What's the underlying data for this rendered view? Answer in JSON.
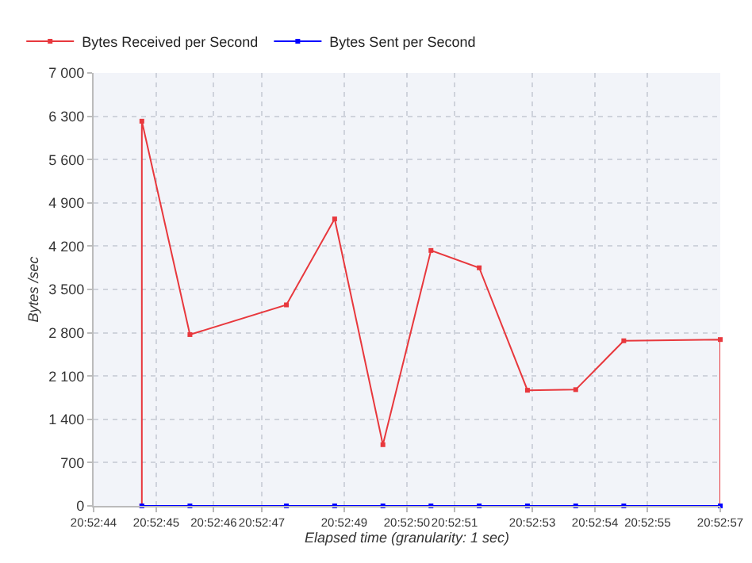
{
  "chart_data": {
    "type": "line",
    "xlabel": "Elapsed time (granularity: 1 sec)",
    "ylabel": "Bytes /sec",
    "series": [
      {
        "name": "Bytes Received per Second",
        "color": "#e8383d",
        "x": [
          20.879167,
          20.879167,
          20.879444,
          20.88,
          20.880278,
          20.880556,
          20.880833,
          20.881111,
          20.881389,
          20.881667,
          20.881944,
          20.8825,
          20.8825
        ],
        "values": [
          0,
          6220,
          2770,
          3250,
          4640,
          990,
          4130,
          3850,
          1870,
          1880,
          2670,
          2690,
          0
        ]
      },
      {
        "name": "Bytes Sent per Second",
        "color": "#0000ff",
        "x": [
          20.879167,
          20.879444,
          20.88,
          20.880278,
          20.880556,
          20.880833,
          20.881111,
          20.881389,
          20.881667,
          20.881944,
          20.8825
        ],
        "values": [
          0,
          0,
          0,
          0,
          0,
          0,
          0,
          0,
          0,
          0,
          0
        ]
      }
    ],
    "xlim": [
      20.878889,
      20.8825
    ],
    "xticks": [
      {
        "value": 20.878889,
        "label": "20:52:44"
      },
      {
        "value": 20.87925,
        "label": "20:52:45"
      },
      {
        "value": 20.879581,
        "label": "20:52:46"
      },
      {
        "value": 20.879858,
        "label": "20:52:47"
      },
      {
        "value": 20.880333,
        "label": "20:52:49"
      },
      {
        "value": 20.880694,
        "label": "20:52:50"
      },
      {
        "value": 20.880969,
        "label": "20:52:51"
      },
      {
        "value": 20.881417,
        "label": "20:52:53"
      },
      {
        "value": 20.881778,
        "label": "20:52:54"
      },
      {
        "value": 20.882081,
        "label": "20:52:55"
      },
      {
        "value": 20.8825,
        "label": "20:52:57"
      }
    ],
    "ylim": [
      0,
      7000
    ],
    "yticks": [
      0,
      700,
      {
        "value": 1400,
        "label": "1 400"
      },
      {
        "value": 2100,
        "label": "2 100"
      },
      {
        "value": 2800,
        "label": "2 800"
      },
      {
        "value": 3500,
        "label": "3 500"
      },
      {
        "value": 4200,
        "label": "4 200"
      },
      {
        "value": 4900,
        "label": "4 900"
      },
      {
        "value": 5600,
        "label": "5 600"
      },
      {
        "value": 6300,
        "label": "6 300"
      },
      {
        "value": 7000,
        "label": "7 000"
      }
    ],
    "grid": true,
    "legend": "top left",
    "marker": "square",
    "line_style": "solid"
  }
}
